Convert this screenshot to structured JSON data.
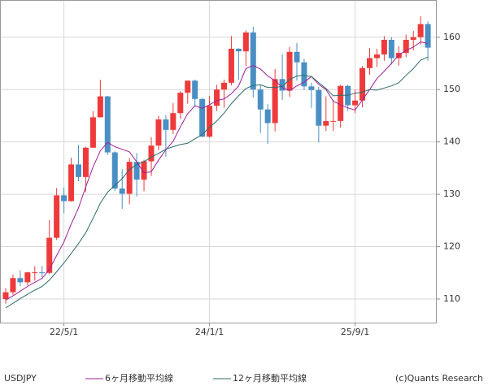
{
  "chart_data": {
    "type": "candlestick",
    "title": "USDJPY",
    "credit": "(c)Quants Research",
    "categories": [
      null,
      null,
      null,
      null,
      null,
      null,
      null,
      null,
      "22/5/1",
      null,
      null,
      null,
      null,
      null,
      null,
      null,
      null,
      null,
      null,
      null,
      null,
      null,
      null,
      null,
      null,
      null,
      null,
      null,
      "24/1/1",
      null,
      null,
      null,
      null,
      null,
      null,
      null,
      null,
      null,
      null,
      null,
      null,
      null,
      null,
      null,
      null,
      null,
      null,
      null,
      "25/9/1",
      null,
      null,
      null,
      null,
      null,
      null,
      null,
      null,
      null,
      null
    ],
    "open": [
      110.0,
      111.3,
      114.0,
      113.2,
      115.1,
      115.1,
      115.0,
      121.7,
      129.8,
      128.7,
      135.7,
      133.3,
      138.9,
      144.7,
      148.7,
      138.0,
      131.1,
      130.1,
      136.2,
      132.8,
      136.3,
      139.3,
      144.3,
      142.3,
      145.5,
      149.4,
      151.7,
      148.2,
      141.0,
      146.9,
      150.0,
      151.3,
      157.8,
      157.3,
      160.9,
      150.0,
      146.2,
      143.6,
      152.0,
      149.8,
      157.2,
      155.2,
      150.6,
      149.9,
      143.1,
      144.0,
      144.0,
      150.7,
      147.0,
      147.9,
      154.1,
      156.0,
      156.7,
      159.5,
      156.0,
      157.0,
      159.5,
      160.0,
      162.5
    ],
    "high": [
      112.1,
      114.7,
      115.5,
      115.2,
      116.3,
      116.3,
      125.1,
      131.2,
      131.3,
      137.0,
      139.4,
      139.1,
      145.9,
      151.9,
      148.8,
      138.2,
      134.8,
      136.9,
      137.9,
      136.6,
      140.9,
      145.0,
      145.1,
      147.4,
      149.7,
      151.7,
      151.9,
      148.4,
      148.8,
      150.9,
      151.9,
      160.2,
      157.9,
      161.3,
      162.0,
      150.9,
      147.2,
      153.9,
      156.7,
      158.1,
      158.9,
      155.9,
      151.3,
      150.5,
      148.7,
      148.0,
      150.9,
      150.9,
      150.0,
      154.5,
      157.9,
      157.8,
      160.2,
      160.0,
      158.3,
      160.5,
      161.2,
      164.0,
      163.0
    ],
    "low": [
      109.1,
      110.8,
      112.5,
      112.6,
      113.5,
      114.2,
      114.7,
      121.3,
      126.4,
      128.6,
      132.5,
      130.4,
      138.9,
      144.7,
      137.5,
      130.6,
      127.2,
      128.1,
      129.6,
      130.6,
      133.5,
      138.4,
      137.2,
      141.5,
      144.4,
      147.3,
      146.7,
      140.9,
      140.8,
      145.9,
      146.5,
      150.8,
      151.9,
      154.5,
      148.5,
      141.7,
      139.6,
      142.0,
      148.0,
      148.6,
      151.7,
      149.9,
      146.5,
      139.9,
      142.1,
      142.1,
      142.7,
      145.9,
      145.5,
      146.6,
      152.8,
      154.3,
      155.5,
      154.8,
      154.6,
      156.2,
      157.5,
      158.6,
      155.5
    ],
    "close": [
      111.3,
      114.0,
      113.2,
      115.1,
      115.1,
      115.0,
      121.7,
      129.8,
      128.7,
      135.7,
      133.3,
      138.9,
      144.7,
      148.7,
      138.0,
      131.1,
      130.1,
      136.2,
      132.8,
      136.3,
      139.3,
      144.3,
      142.3,
      145.5,
      149.4,
      151.7,
      148.2,
      141.0,
      146.9,
      150.0,
      151.3,
      157.8,
      157.3,
      160.9,
      150.0,
      146.2,
      143.6,
      152.0,
      149.8,
      157.2,
      155.2,
      150.6,
      149.9,
      143.1,
      144.0,
      144.0,
      150.7,
      147.0,
      147.9,
      154.1,
      156.0,
      156.7,
      159.5,
      156.0,
      157.0,
      159.5,
      160.0,
      162.5,
      158.0
    ],
    "up_color": "#ee3a3a",
    "down_color": "#4a8fc4",
    "series": [
      {
        "name": "6ヶ月移動平均線",
        "color": "#a0209a",
        "values": [
          109.8,
          110.6,
          111.5,
          112.4,
          113.2,
          113.95,
          115.7,
          118.3,
          120.9,
          124.3,
          127.4,
          131.4,
          135.2,
          138.3,
          139.9,
          139.1,
          138.6,
          138.1,
          136.2,
          134.1,
          134.3,
          136.5,
          138.5,
          140.1,
          142.9,
          145.4,
          146.9,
          146.4,
          147.1,
          147.9,
          148.2,
          149.2,
          150.7,
          154.0,
          154.6,
          153.9,
          152.6,
          151.7,
          150.4,
          149.8,
          150.7,
          151.4,
          152.5,
          151.0,
          150.0,
          147.8,
          147.1,
          146.5,
          146.1,
          148.0,
          150.0,
          152.1,
          153.5,
          155.0,
          156.6,
          157.5,
          158.1,
          159.1,
          158.8
        ]
      },
      {
        "name": "12ヶ月移動平均線",
        "color": "#2e6b6b",
        "values": [
          108.3,
          109.2,
          110.1,
          110.9,
          111.7,
          112.4,
          113.6,
          115.2,
          116.9,
          118.7,
          120.6,
          122.65,
          125.4,
          128.3,
          130.4,
          131.7,
          133.0,
          134.7,
          135.7,
          136.2,
          137.1,
          137.8,
          138.6,
          139.1,
          139.5,
          139.75,
          140.6,
          141.4,
          142.8,
          144.0,
          145.5,
          147.3,
          148.8,
          150.2,
          150.8,
          150.9,
          150.4,
          150.4,
          150.6,
          151.9,
          152.6,
          152.7,
          152.5,
          151.3,
          150.2,
          148.8,
          148.9,
          148.9,
          149.3,
          149.5,
          150.0,
          149.9,
          150.3,
          150.7,
          151.3,
          152.7,
          154.0,
          155.6,
          156.2
        ]
      }
    ],
    "ylim": [
      105.5,
      167.1
    ],
    "yticks": [
      110,
      120,
      130,
      140,
      150,
      160
    ],
    "grid": true
  }
}
